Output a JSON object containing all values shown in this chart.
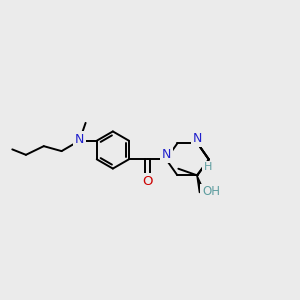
{
  "background_color": "#ebebeb",
  "atom_colors": {
    "C": "#000000",
    "N": "#2020cc",
    "O": "#cc0000",
    "H": "#5f9ea0"
  },
  "figsize": [
    3.0,
    3.0
  ],
  "dpi": 100,
  "bond_lw": 1.4,
  "font_size": 8.5
}
